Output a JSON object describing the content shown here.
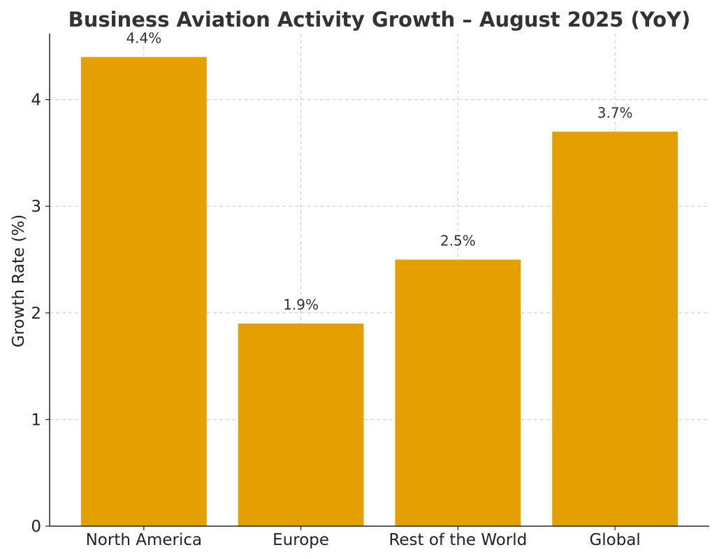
{
  "chart_data": {
    "type": "bar",
    "title": "Business Aviation Activity Growth – August 2025 (YoY)",
    "xlabel": "",
    "ylabel": "Growth Rate (%)",
    "categories": [
      "North America",
      "Europe",
      "Rest of the World",
      "Global"
    ],
    "values": [
      4.4,
      1.9,
      2.5,
      3.7
    ],
    "data_labels": [
      "4.4%",
      "1.9%",
      "2.5%",
      "3.7%"
    ],
    "yticks": [
      0,
      1,
      2,
      3,
      4
    ],
    "ylim": [
      0,
      4.62
    ],
    "grid": true,
    "bar_color": "#E3A000"
  }
}
